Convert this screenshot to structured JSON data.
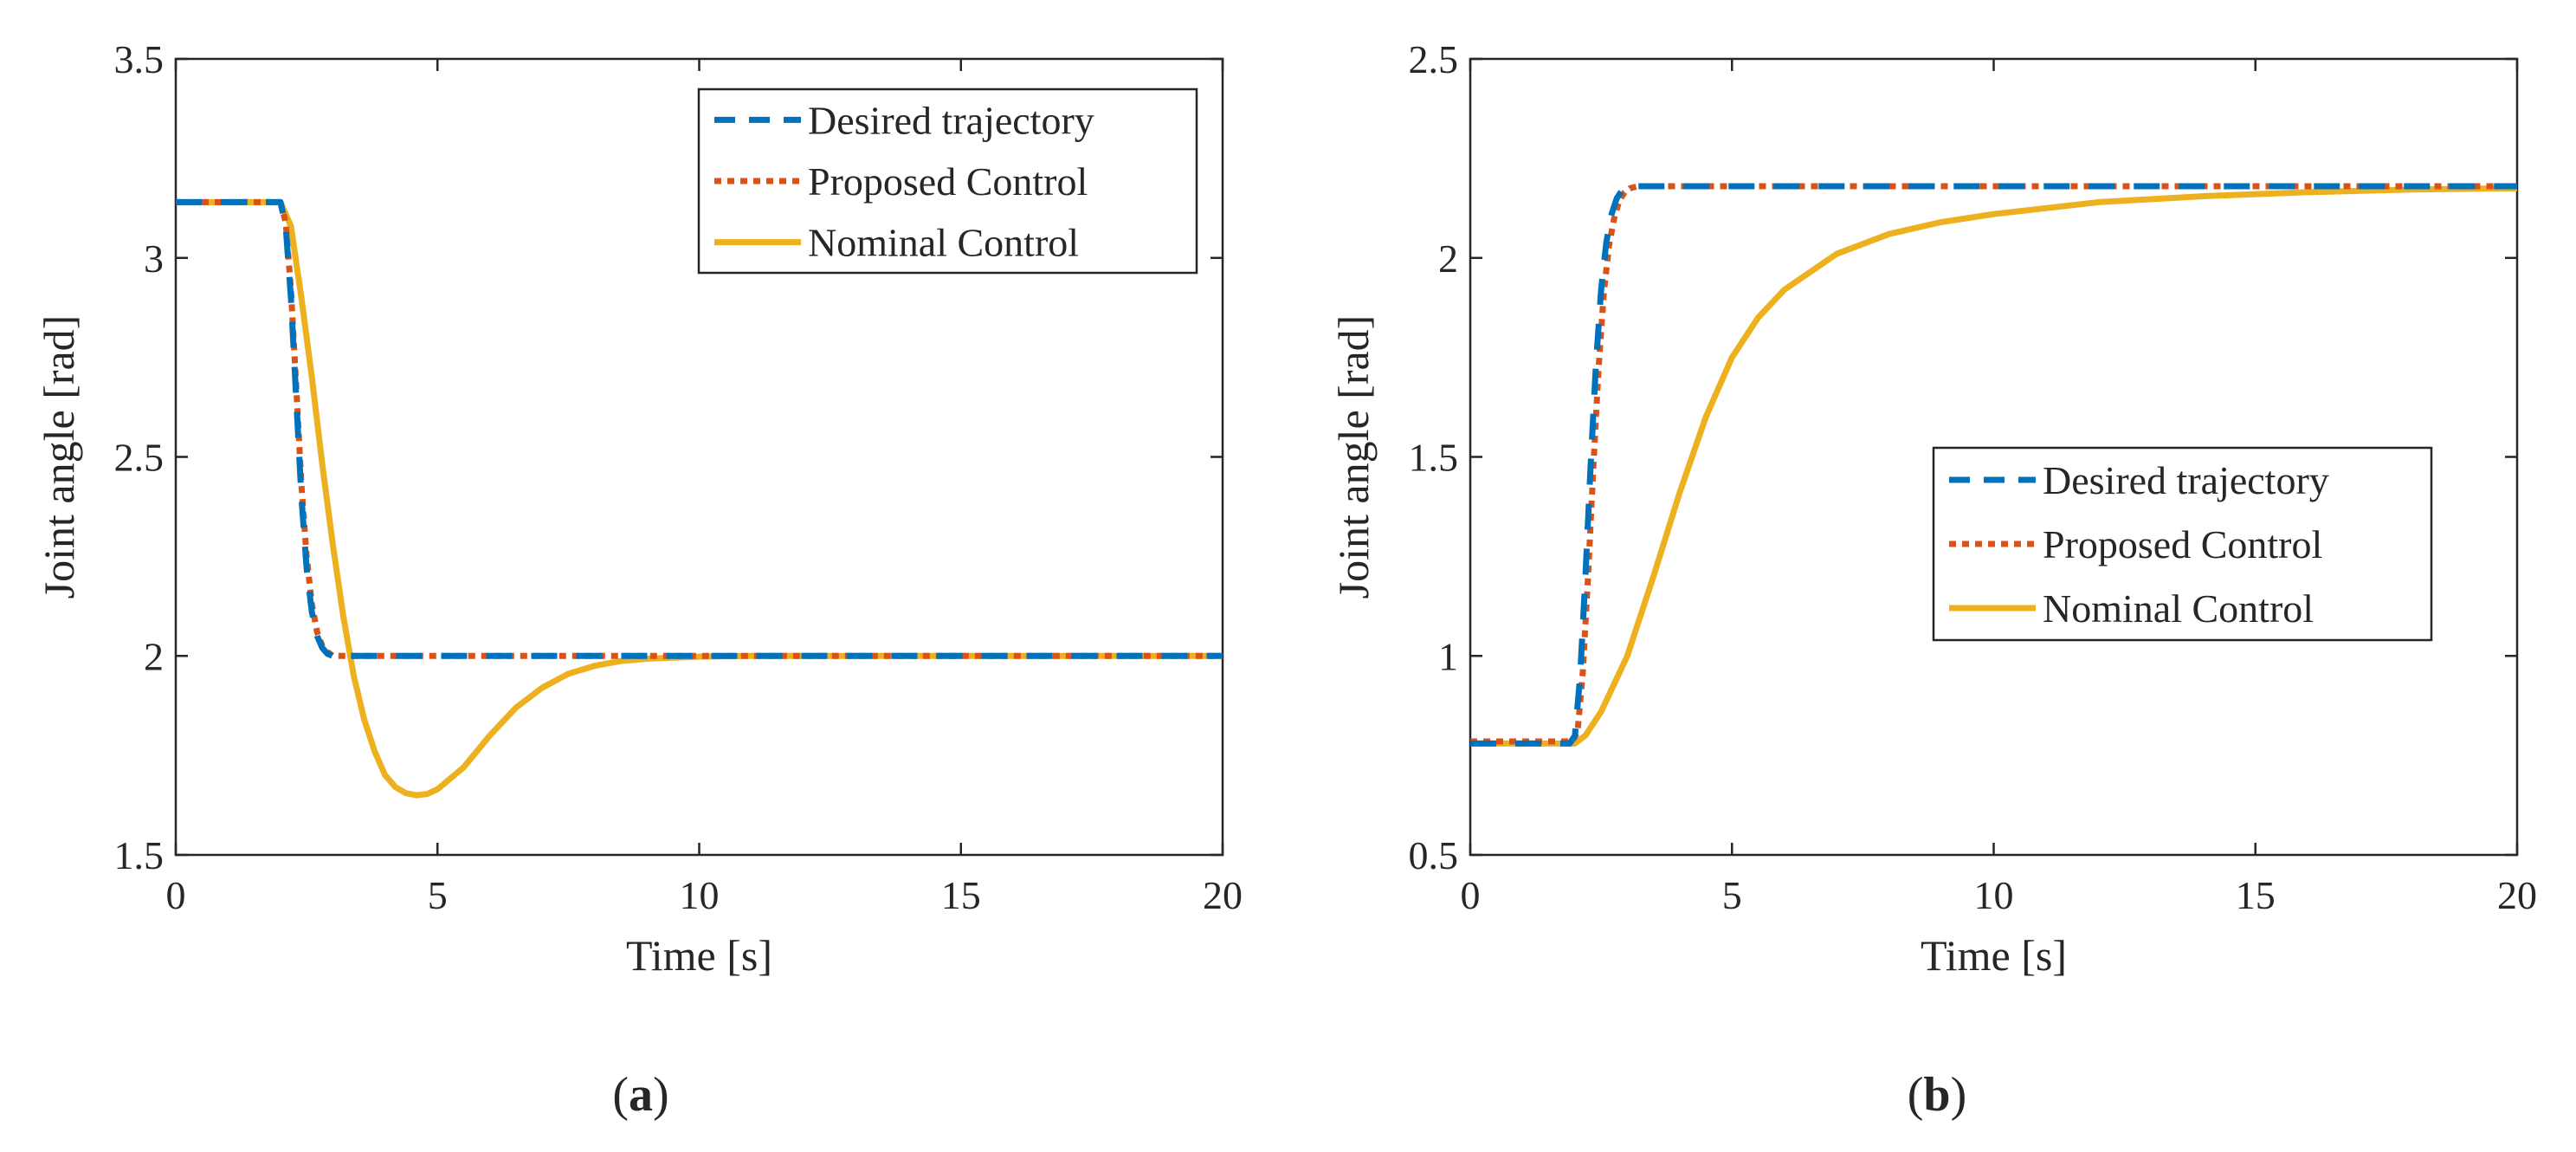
{
  "colors": {
    "desired": "#0072BD",
    "proposed": "#D95319",
    "nominal": "#EDB120",
    "axis": "#262626",
    "background": "#ffffff"
  },
  "chart_data": [
    {
      "panel": "a",
      "caption": {
        "open": "(",
        "letter": "a",
        "close": ")"
      },
      "type": "line",
      "xlabel": "Time [s]",
      "ylabel": "Joint angle [rad]",
      "xlim": [
        0,
        20
      ],
      "ylim": [
        1.5,
        3.5
      ],
      "xticks": [
        0,
        5,
        10,
        15,
        20
      ],
      "yticks": [
        1.5,
        2,
        2.5,
        3,
        3.5
      ],
      "xtick_labels": [
        "0",
        "5",
        "10",
        "15",
        "20"
      ],
      "ytick_labels": [
        "1.5",
        "2",
        "2.5",
        "3",
        "3.5"
      ],
      "grid": false,
      "legend_position": "top-right",
      "series": [
        {
          "name": "Desired trajectory",
          "style": "dashed",
          "color_key": "desired",
          "x": [
            0,
            2,
            2.1,
            2.2,
            2.3,
            2.4,
            2.5,
            2.6,
            2.7,
            2.8,
            2.9,
            3.0,
            3.2,
            3.5,
            20
          ],
          "y": [
            3.14,
            3.14,
            3.08,
            2.9,
            2.65,
            2.4,
            2.22,
            2.11,
            2.05,
            2.02,
            2.005,
            2.0,
            2.0,
            2.0,
            2.0
          ]
        },
        {
          "name": "Proposed Control",
          "style": "dotted",
          "color_key": "proposed",
          "x": [
            0,
            2,
            2.1,
            2.2,
            2.3,
            2.4,
            2.5,
            2.6,
            2.7,
            2.8,
            2.9,
            3.0,
            3.2,
            3.5,
            20
          ],
          "y": [
            3.14,
            3.14,
            3.09,
            2.92,
            2.68,
            2.43,
            2.25,
            2.13,
            2.06,
            2.025,
            2.01,
            2.0,
            2.0,
            2.0,
            2.0
          ]
        },
        {
          "name": "Nominal Control",
          "style": "solid",
          "color_key": "nominal",
          "x": [
            0,
            2.0,
            2.2,
            2.4,
            2.6,
            2.8,
            3.0,
            3.2,
            3.4,
            3.6,
            3.8,
            4.0,
            4.2,
            4.4,
            4.6,
            4.8,
            5.0,
            5.5,
            6.0,
            6.5,
            7.0,
            7.5,
            8.0,
            8.5,
            9.0,
            10.0,
            11.0,
            12.0,
            14.0,
            20.0
          ],
          "y": [
            3.14,
            3.14,
            3.08,
            2.9,
            2.7,
            2.48,
            2.28,
            2.1,
            1.95,
            1.84,
            1.76,
            1.7,
            1.67,
            1.655,
            1.65,
            1.653,
            1.665,
            1.72,
            1.8,
            1.87,
            1.92,
            1.955,
            1.975,
            1.987,
            1.993,
            1.998,
            2.0,
            2.0,
            2.0,
            2.0
          ]
        }
      ]
    },
    {
      "panel": "b",
      "caption": {
        "open": "(",
        "letter": "b",
        "close": ")"
      },
      "type": "line",
      "xlabel": "Time [s]",
      "ylabel": "Joint angle [rad]",
      "xlim": [
        0,
        20
      ],
      "ylim": [
        0.5,
        2.5
      ],
      "xticks": [
        0,
        5,
        10,
        15,
        20
      ],
      "yticks": [
        0.5,
        1,
        1.5,
        2,
        2.5
      ],
      "xtick_labels": [
        "0",
        "5",
        "10",
        "15",
        "20"
      ],
      "ytick_labels": [
        "0.5",
        "1",
        "1.5",
        "2",
        "2.5"
      ],
      "grid": false,
      "legend_position": "center-right",
      "series": [
        {
          "name": "Desired trajectory",
          "style": "dashed",
          "color_key": "desired",
          "x": [
            0,
            1.9,
            2.0,
            2.1,
            2.2,
            2.3,
            2.4,
            2.5,
            2.6,
            2.7,
            2.8,
            2.9,
            3.0,
            3.2,
            3.5,
            20
          ],
          "y": [
            0.78,
            0.78,
            0.8,
            0.95,
            1.2,
            1.48,
            1.73,
            1.92,
            2.04,
            2.11,
            2.15,
            2.17,
            2.178,
            2.18,
            2.18,
            2.18
          ]
        },
        {
          "name": "Proposed Control",
          "style": "dotted",
          "color_key": "proposed",
          "x": [
            0,
            1.95,
            2.05,
            2.15,
            2.25,
            2.35,
            2.45,
            2.55,
            2.65,
            2.75,
            2.85,
            2.95,
            3.05,
            3.2,
            3.5,
            20
          ],
          "y": [
            0.785,
            0.785,
            0.81,
            0.96,
            1.2,
            1.47,
            1.72,
            1.91,
            2.03,
            2.1,
            2.145,
            2.165,
            2.175,
            2.18,
            2.18,
            2.18
          ]
        },
        {
          "name": "Nominal Control",
          "style": "solid",
          "color_key": "nominal",
          "x": [
            0,
            2.0,
            2.2,
            2.5,
            3.0,
            3.5,
            4.0,
            4.5,
            5.0,
            5.5,
            6.0,
            7.0,
            8.0,
            9.0,
            10.0,
            11.0,
            12.0,
            14.0,
            16.0,
            18.0,
            20.0
          ],
          "y": [
            0.78,
            0.78,
            0.8,
            0.86,
            1.0,
            1.2,
            1.41,
            1.6,
            1.75,
            1.85,
            1.92,
            2.01,
            2.06,
            2.09,
            2.11,
            2.125,
            2.14,
            2.155,
            2.165,
            2.172,
            2.175
          ]
        }
      ]
    }
  ]
}
